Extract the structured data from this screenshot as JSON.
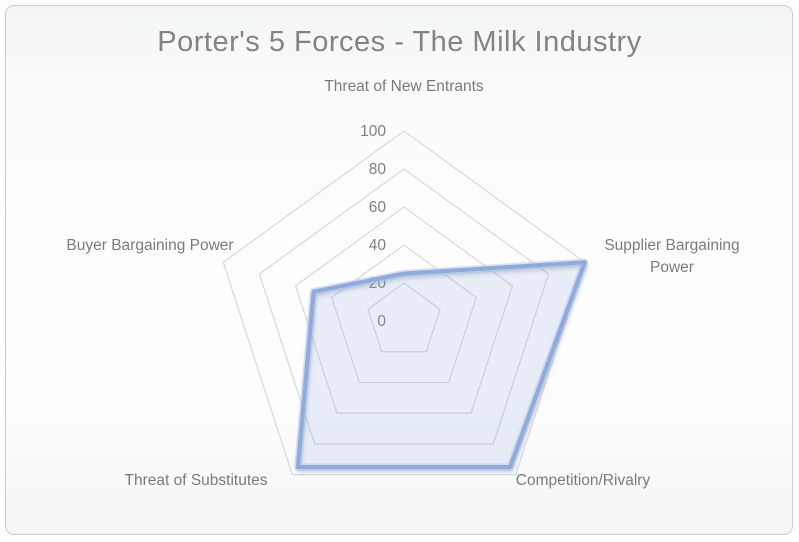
{
  "chart": {
    "title": "Porter's 5 Forces - The Milk Industry"
  },
  "chart_data": {
    "type": "radar",
    "title": "Porter's 5 Forces - The Milk Industry",
    "categories": [
      "Threat of New Entrants",
      "Supplier Bargaining Power",
      "Competition/Rivalry",
      "Threat of Substitutes",
      "Buyer Bargaining Power"
    ],
    "values": [
      25,
      100,
      95,
      95,
      50
    ],
    "axis": {
      "min": 0,
      "max": 100,
      "tick_interval": 20,
      "ticks": [
        0,
        20,
        40,
        60,
        80,
        100
      ]
    },
    "layout_hints": {
      "grid": "concentric pentagon rings, no radial spokes",
      "legend": "none",
      "start_axis": "top, clockwise"
    },
    "colors": {
      "series_line": "#8fabdb",
      "series_line_halo": "#c9d5ec",
      "series_fill": "rgba(143, 171, 219, 0.20)",
      "gridline": "#d9dadd",
      "tick_label": "#7e7e7e",
      "axis_label": "#7b7b7b",
      "title": "#838383",
      "frame_border": "#c9cbce"
    }
  }
}
